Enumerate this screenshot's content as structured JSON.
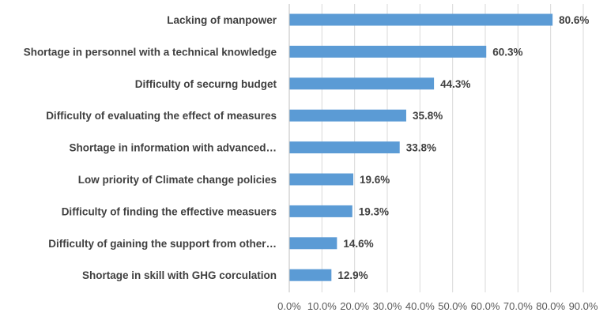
{
  "chart_data": {
    "type": "bar",
    "orientation": "horizontal",
    "title": "",
    "xlabel": "",
    "ylabel": "",
    "categories": [
      "Lacking of manpower",
      "Shortage in personnel with a technical knowledge",
      "Difficulty of securng budget",
      "Difficulty of evaluating the effect of measures",
      "Shortage in information with advanced…",
      "Low priority of Climate change policies",
      "Difficulty of finding the effective measuers",
      "Difficulty of gaining the support from other…",
      "Shortage in skill with GHG corculation"
    ],
    "values": [
      80.6,
      60.3,
      44.3,
      35.8,
      33.8,
      19.6,
      19.3,
      14.6,
      12.9
    ],
    "value_labels": [
      "80.6%",
      "60.3%",
      "44.3%",
      "35.8%",
      "33.8%",
      "19.6%",
      "19.3%",
      "14.6%",
      "12.9%"
    ],
    "xlim": [
      0,
      90
    ],
    "x_ticks": [
      "0.0%",
      "10.0%",
      "20.0%",
      "30.0%",
      "40.0%",
      "50.0%",
      "60.0%",
      "70.0%",
      "80.0%",
      "90.0%"
    ],
    "grid": "vertical",
    "bar_color": "#5b9bd5"
  }
}
